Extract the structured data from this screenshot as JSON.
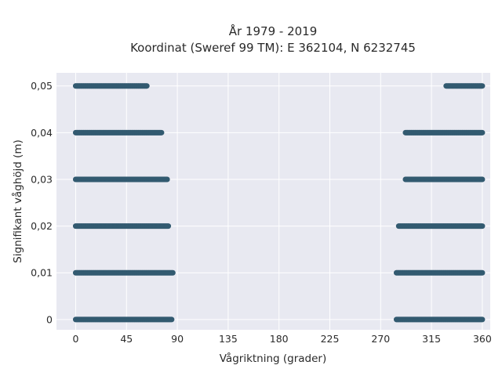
{
  "chart_data": {
    "type": "scatter",
    "title": "År 1979 - 2019",
    "subtitle": "Koordinat (Sweref 99 TM): E 362104, N 6232745",
    "xlabel": "Vågriktning (grader)",
    "ylabel": "Signifikant våghöjd (m)",
    "xlim": [
      -17,
      367
    ],
    "ylim": [
      -0.0022,
      0.0528
    ],
    "x_ticks": [
      0,
      45,
      90,
      135,
      180,
      225,
      270,
      315,
      360
    ],
    "x_tick_labels": [
      "0",
      "45",
      "90",
      "135",
      "180",
      "225",
      "270",
      "315",
      "360"
    ],
    "y_ticks": [
      0,
      0.01,
      0.02,
      0.03,
      0.04,
      0.05
    ],
    "y_tick_labels": [
      "0",
      "0,01",
      "0,02",
      "0,03",
      "0,04",
      "0,05"
    ],
    "grid": true,
    "marker_color": "#325a70",
    "background_color": "#e8e9f1",
    "series": [
      {
        "bands": [
          {
            "y": 0.05,
            "ranges": [
              [
                0,
                63
              ],
              [
                328,
                360
              ]
            ]
          },
          {
            "y": 0.04,
            "ranges": [
              [
                0,
                76
              ],
              [
                292,
                360
              ]
            ]
          },
          {
            "y": 0.03,
            "ranges": [
              [
                0,
                81
              ],
              [
                292,
                360
              ]
            ]
          },
          {
            "y": 0.02,
            "ranges": [
              [
                0,
                82
              ],
              [
                286,
                360
              ]
            ]
          },
          {
            "y": 0.01,
            "ranges": [
              [
                0,
                86
              ],
              [
                284,
                360
              ]
            ]
          },
          {
            "y": 0.0,
            "ranges": [
              [
                0,
                85
              ],
              [
                284,
                360
              ]
            ]
          }
        ]
      }
    ]
  }
}
